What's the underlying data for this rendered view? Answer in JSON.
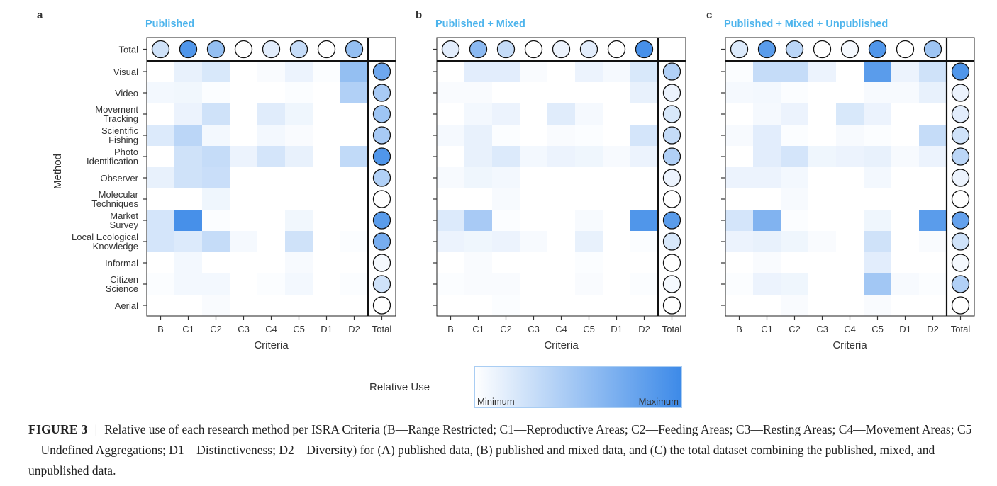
{
  "chart_data": {
    "type": "heatmap",
    "y_axis_label": "Method",
    "x_axis_label": "Criteria",
    "criteria": [
      "B",
      "C1",
      "C2",
      "C3",
      "C4",
      "C5",
      "D1",
      "D2"
    ],
    "total_label": "Total",
    "methods": [
      [
        "Visual"
      ],
      [
        "Video"
      ],
      [
        "Movement",
        "Tracking"
      ],
      [
        "Scientific",
        "Fishing"
      ],
      [
        "Photo",
        "Identification"
      ],
      [
        "Observer"
      ],
      [
        "Molecular",
        "Techniques"
      ],
      [
        "Market",
        "Survey"
      ],
      [
        "Local Ecological",
        "Knowledge"
      ],
      [
        "Informal"
      ],
      [
        "Citizen",
        "Science"
      ],
      [
        "Aerial"
      ]
    ],
    "legend": {
      "title": "Relative Use",
      "min_label": "Minimum",
      "max_label": "Maximum",
      "color_min": "#ffffff",
      "color_max": "#3d8ae8"
    },
    "panels": [
      {
        "letter": "a",
        "title": "Published",
        "cells": [
          [
            0.0,
            0.12,
            0.2,
            0.0,
            0.03,
            0.1,
            0.02,
            0.55
          ],
          [
            0.06,
            0.07,
            0.02,
            0.0,
            0.0,
            0.02,
            0.0,
            0.4
          ],
          [
            0.0,
            0.1,
            0.25,
            0.0,
            0.16,
            0.08,
            0.0,
            0.0
          ],
          [
            0.18,
            0.35,
            0.06,
            0.0,
            0.06,
            0.03,
            0.0,
            0.0
          ],
          [
            0.0,
            0.25,
            0.3,
            0.1,
            0.22,
            0.12,
            0.0,
            0.32
          ],
          [
            0.12,
            0.25,
            0.28,
            0.0,
            0.0,
            0.0,
            0.0,
            0.0
          ],
          [
            0.0,
            0.0,
            0.08,
            0.0,
            0.0,
            0.0,
            0.0,
            0.0
          ],
          [
            0.22,
            0.95,
            0.02,
            0.0,
            0.0,
            0.07,
            0.0,
            0.0
          ],
          [
            0.22,
            0.18,
            0.3,
            0.05,
            0.0,
            0.25,
            0.0,
            0.02
          ],
          [
            0.0,
            0.06,
            0.0,
            0.0,
            0.0,
            0.04,
            0.0,
            0.0
          ],
          [
            0.02,
            0.06,
            0.06,
            0.0,
            0.02,
            0.06,
            0.0,
            0.02
          ],
          [
            0.0,
            0.0,
            0.03,
            0.0,
            0.0,
            0.0,
            0.0,
            0.0
          ]
        ],
        "top_totals": [
          0.25,
          0.9,
          0.55,
          0.0,
          0.15,
          0.3,
          0.0,
          0.55
        ],
        "side_totals": [
          0.75,
          0.45,
          0.5,
          0.45,
          0.9,
          0.4,
          0.0,
          0.85,
          0.7,
          0.05,
          0.25,
          0.0
        ]
      },
      {
        "letter": "b",
        "title": "Published + Mixed",
        "cells": [
          [
            0.0,
            0.15,
            0.15,
            0.03,
            0.0,
            0.1,
            0.05,
            0.2
          ],
          [
            0.03,
            0.03,
            0.0,
            0.0,
            0.0,
            0.0,
            0.0,
            0.12
          ],
          [
            0.0,
            0.06,
            0.1,
            0.0,
            0.16,
            0.05,
            0.0,
            0.0
          ],
          [
            0.05,
            0.12,
            0.02,
            0.0,
            0.03,
            0.02,
            0.0,
            0.22
          ],
          [
            0.0,
            0.12,
            0.18,
            0.06,
            0.1,
            0.08,
            0.04,
            0.1
          ],
          [
            0.04,
            0.08,
            0.06,
            0.0,
            0.0,
            0.0,
            0.0,
            0.0
          ],
          [
            0.0,
            0.0,
            0.04,
            0.0,
            0.0,
            0.0,
            0.0,
            0.0
          ],
          [
            0.18,
            0.45,
            0.02,
            0.0,
            0.0,
            0.04,
            0.0,
            0.9
          ],
          [
            0.1,
            0.08,
            0.1,
            0.04,
            0.0,
            0.12,
            0.0,
            0.02
          ],
          [
            0.0,
            0.03,
            0.0,
            0.0,
            0.0,
            0.02,
            0.0,
            0.0
          ],
          [
            0.02,
            0.03,
            0.03,
            0.0,
            0.0,
            0.03,
            0.0,
            0.02
          ],
          [
            0.0,
            0.0,
            0.02,
            0.0,
            0.0,
            0.0,
            0.0,
            0.0
          ]
        ],
        "top_totals": [
          0.15,
          0.6,
          0.3,
          0.0,
          0.1,
          0.15,
          0.0,
          0.95
        ],
        "side_totals": [
          0.4,
          0.1,
          0.2,
          0.3,
          0.4,
          0.1,
          0.0,
          0.85,
          0.2,
          0.0,
          0.05,
          0.0
        ]
      },
      {
        "letter": "c",
        "title": "Published + Mixed + Unpublished",
        "cells": [
          [
            0.02,
            0.3,
            0.3,
            0.1,
            0.0,
            0.85,
            0.1,
            0.25
          ],
          [
            0.05,
            0.06,
            0.02,
            0.0,
            0.0,
            0.04,
            0.04,
            0.12
          ],
          [
            0.0,
            0.05,
            0.1,
            0.0,
            0.2,
            0.1,
            0.0,
            0.0
          ],
          [
            0.04,
            0.15,
            0.02,
            0.0,
            0.04,
            0.02,
            0.0,
            0.3
          ],
          [
            0.0,
            0.15,
            0.22,
            0.08,
            0.1,
            0.12,
            0.04,
            0.1
          ],
          [
            0.1,
            0.1,
            0.06,
            0.0,
            0.0,
            0.06,
            0.0,
            0.0
          ],
          [
            0.0,
            0.0,
            0.04,
            0.0,
            0.0,
            0.0,
            0.0,
            0.0
          ],
          [
            0.22,
            0.65,
            0.02,
            0.0,
            0.0,
            0.08,
            0.0,
            0.85
          ],
          [
            0.1,
            0.12,
            0.08,
            0.03,
            0.0,
            0.25,
            0.0,
            0.03
          ],
          [
            0.0,
            0.03,
            0.0,
            0.0,
            0.0,
            0.15,
            0.0,
            0.0
          ],
          [
            0.02,
            0.1,
            0.08,
            0.0,
            0.0,
            0.48,
            0.04,
            0.02
          ],
          [
            0.0,
            0.0,
            0.03,
            0.0,
            0.0,
            0.03,
            0.0,
            0.0
          ]
        ],
        "top_totals": [
          0.18,
          0.85,
          0.35,
          0.0,
          0.05,
          0.9,
          0.0,
          0.5
        ],
        "side_totals": [
          0.9,
          0.1,
          0.15,
          0.25,
          0.35,
          0.1,
          0.0,
          0.8,
          0.25,
          0.05,
          0.4,
          0.0
        ]
      }
    ]
  },
  "caption": {
    "figure_label": "FIGURE 3",
    "separator": "|",
    "text": "Relative use of each research method per ISRA Criteria (B—Range Restricted; C1—Reproductive Areas; C2—Feeding Areas; C3—Resting Areas; C4—Movement Areas; C5—Undefined Aggregations; D1—Distinctiveness; D2—Diversity) for (A) published data, (B) published and mixed data, and (C) the total dataset combining the published, mixed, and unpublished data."
  }
}
